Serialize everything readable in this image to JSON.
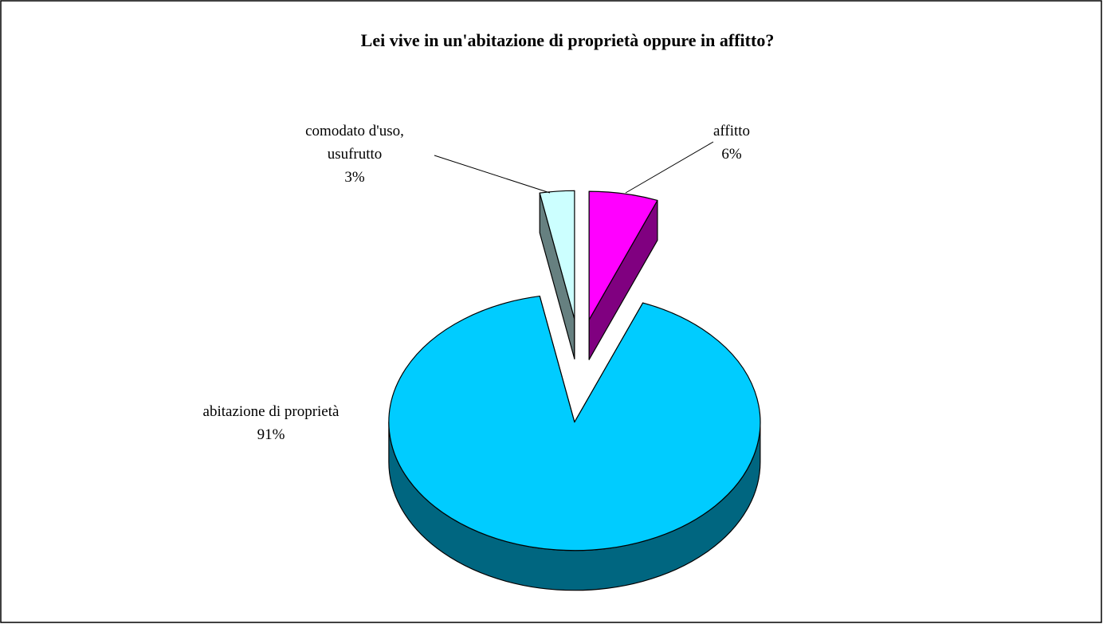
{
  "chart_data": {
    "type": "pie3d",
    "title": "Lei vive in un'abitazione di proprietà oppure in affitto?",
    "categories": [
      "affitto",
      "abitazione di proprietà",
      "comodato d'uso, usufrutto"
    ],
    "values": [
      6,
      91,
      3
    ],
    "value_labels": [
      "6%",
      "91%",
      "3%"
    ],
    "colors": [
      "#ff00ff",
      "#00ccff",
      "#ccffff"
    ],
    "side_colors": [
      "#800080",
      "#006680",
      "#668080"
    ]
  }
}
